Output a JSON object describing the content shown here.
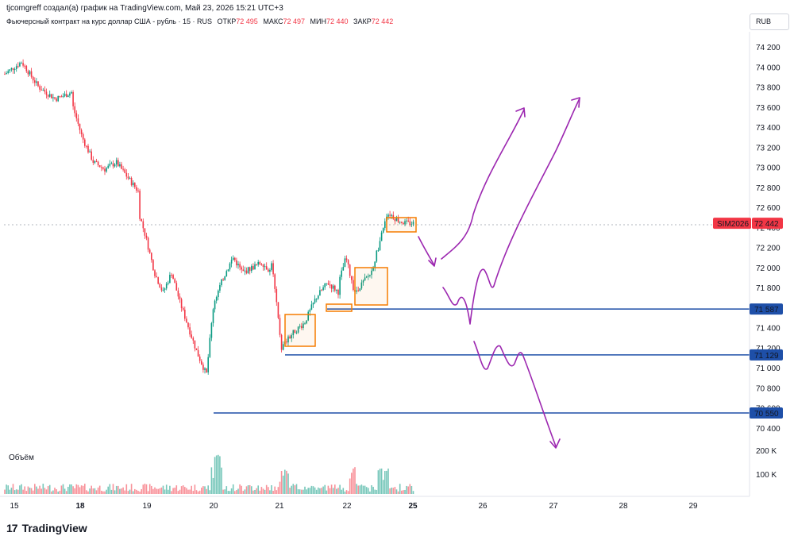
{
  "header": {
    "author_line": "tjcomgreff создал(а) график на TradingView.com, Май 23, 2026 15:21 UTC+3",
    "instrument": "Фьючерсный контракт на курс доллар США - рубль · 15 · RUS",
    "open_label": "ОТКР",
    "open_value": "72 495",
    "high_label": "МАКС",
    "high_value": "72 497",
    "low_label": "МИН",
    "low_value": "72 440",
    "close_label": "ЗАКР",
    "close_value": "72 442",
    "currency": "RUB"
  },
  "volume_label": "Объём",
  "footer": {
    "brand": "TradingView",
    "logo_mark": "17"
  },
  "price_tag": {
    "ticker": "SIM2026",
    "value": "72 442"
  },
  "level_tags": [
    "71 587",
    "71 129",
    "70 550"
  ],
  "colors": {
    "up": "#089981",
    "down": "#f23645",
    "level": "#1e4fa8",
    "annotation": "#9c27b0",
    "box": "#f57c00",
    "price_tag": "#f23645"
  },
  "chart_data": {
    "type": "candlestick",
    "x_ticks": [
      "15",
      "18",
      "19",
      "20",
      "21",
      "22",
      "25",
      "26",
      "27",
      "28",
      "29"
    ],
    "y_ticks": [
      "74 200",
      "74 000",
      "73 800",
      "73 600",
      "73 400",
      "73 200",
      "73 000",
      "72 800",
      "72 600",
      "72 400",
      "72 200",
      "72 000",
      "71 800",
      "71 600",
      "71 400",
      "71 200",
      "71 000",
      "70 800",
      "70 600",
      "70 400"
    ],
    "y_range": [
      70300,
      74300
    ],
    "volume_ticks": [
      "200 K",
      "100 K"
    ],
    "current_price": 72442,
    "levels": [
      {
        "price": 71587,
        "start": "21",
        "label": "71 587"
      },
      {
        "price": 71129,
        "start": "21",
        "label": "71 129"
      },
      {
        "price": 70550,
        "start": "20",
        "label": "70 550"
      }
    ],
    "price_path": [
      [
        "15",
        73930
      ],
      [
        "15",
        74050
      ],
      [
        "15",
        73800
      ],
      [
        "15",
        73680
      ],
      [
        "15",
        73750
      ],
      [
        "18",
        73680
      ],
      [
        "18",
        73300
      ],
      [
        "18",
        73050
      ],
      [
        "18",
        72980
      ],
      [
        "18",
        73050
      ],
      [
        "18",
        72900
      ],
      [
        "18",
        72750
      ],
      [
        "19",
        72600
      ],
      [
        "19",
        72300
      ],
      [
        "19",
        71950
      ],
      [
        "19",
        71750
      ],
      [
        "19",
        71950
      ],
      [
        "19",
        71650
      ],
      [
        "19",
        71400
      ],
      [
        "19",
        71150
      ],
      [
        "19",
        70950
      ],
      [
        "20",
        70700
      ],
      [
        "20",
        71650
      ],
      [
        "20",
        71900
      ],
      [
        "20",
        72100
      ],
      [
        "20",
        71950
      ],
      [
        "20",
        72000
      ],
      [
        "20",
        72050
      ],
      [
        "20",
        71950
      ],
      [
        "21",
        72200
      ],
      [
        "21",
        71200
      ],
      [
        "21",
        71350
      ],
      [
        "21",
        71450
      ],
      [
        "21",
        71700
      ],
      [
        "21",
        71850
      ],
      [
        "21",
        71750
      ],
      [
        "22",
        71800
      ],
      [
        "22",
        72100
      ],
      [
        "22",
        71750
      ],
      [
        "22",
        71850
      ],
      [
        "22",
        71950
      ],
      [
        "22",
        72250
      ],
      [
        "22",
        72550
      ],
      [
        "22",
        72480
      ],
      [
        "22",
        72442
      ]
    ]
  }
}
